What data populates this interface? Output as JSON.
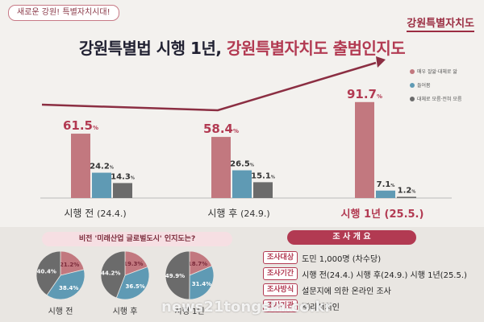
{
  "tagline": "새로운 강원! 특별자치시대!",
  "brand": "강원특별자치도",
  "title": {
    "main": "강원특별법 시행 1년, ",
    "highlight": "강원특별자치도 출범인지도"
  },
  "legend": [
    {
      "label": "매우 잘앎·대체로 앎",
      "color": "#c2787f"
    },
    {
      "label": "들어봄",
      "color": "#5f9ab4"
    },
    {
      "label": "대체로 모름·전혀 모름",
      "color": "#6b6b6b"
    }
  ],
  "chart_data": [
    {
      "type": "bar",
      "categories": [
        "시행 전 (24.4.)",
        "시행 후 (24.9.)",
        "시행 1년 (25.5.)"
      ],
      "series": [
        {
          "name": "매우 잘앎·대체로 앎",
          "values": [
            61.5,
            58.4,
            91.7
          ]
        },
        {
          "name": "들어봄",
          "values": [
            24.2,
            26.5,
            7.1
          ]
        },
        {
          "name": "대체로 모름·전혀 모름",
          "values": [
            14.3,
            15.1,
            1.2
          ]
        }
      ],
      "value_suffix": "%",
      "colors": [
        "#c2787f",
        "#5f9ab4",
        "#6b6b6b"
      ]
    },
    {
      "type": "pie",
      "title": "비전 '미래산업 글로벌도시' 인지도는?",
      "pies": [
        {
          "label": "시행 전",
          "slices": [
            21.2,
            38.4,
            40.4
          ]
        },
        {
          "label": "시행 후",
          "slices": [
            19.3,
            36.5,
            44.2
          ]
        },
        {
          "label": "시행 1년",
          "slices": [
            18.7,
            31.4,
            49.9
          ]
        }
      ]
    }
  ],
  "group_labels": [
    {
      "name": "시행 전",
      "date": "(24.4.)"
    },
    {
      "name": "시행 후",
      "date": "(24.9.)"
    },
    {
      "name": "시행 1년",
      "date": "(25.5.)"
    }
  ],
  "info": {
    "title": "조 사 개 요",
    "rows": [
      {
        "label": "조사대상",
        "value": "도민 1,000명 (차수당)"
      },
      {
        "label": "조사기간",
        "value": "시행 전(24.4.) 시행 후(24.9.) 시행 1년(25.5.)"
      },
      {
        "label": "조사방식",
        "value": "설문지에 의한 온라인 조사"
      },
      {
        "label": "조사기관",
        "value": "㈜리서치인"
      }
    ]
  },
  "watermark": "news21tongsin.co.kr"
}
